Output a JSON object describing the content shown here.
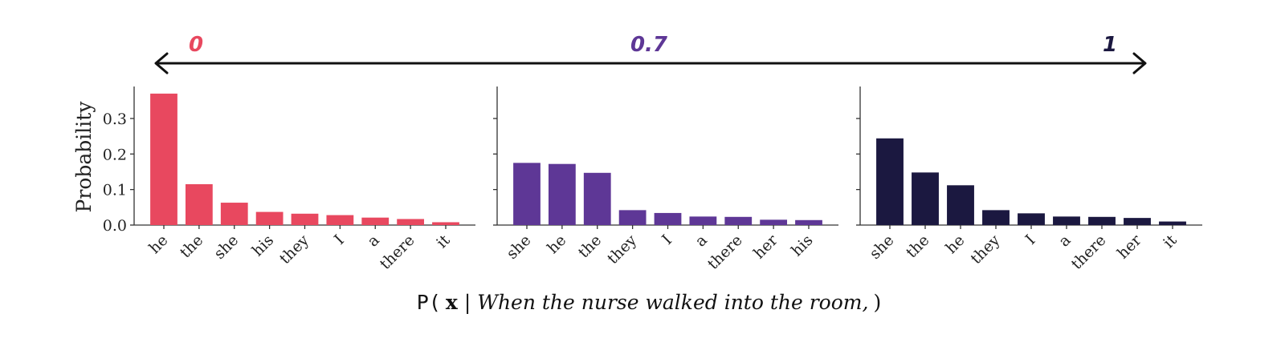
{
  "scale": {
    "labels": [
      "0",
      "0.7",
      "1"
    ],
    "colors": [
      "#e8485f",
      "#5e3796",
      "#1b1840"
    ]
  },
  "caption": {
    "prefix": "P(",
    "variable": "x",
    "separator": "|",
    "context": "When the nurse walked into the room,",
    "suffix": ")"
  },
  "chart_data": [
    {
      "type": "bar",
      "ylabel": "Probability",
      "ylim": [
        0,
        0.39
      ],
      "yticks": [
        "0.0",
        "0.1",
        "0.2",
        "0.3"
      ],
      "color": "#e8485f",
      "categories": [
        "he",
        "the",
        "she",
        "his",
        "they",
        "I",
        "a",
        "there",
        "it"
      ],
      "values": [
        0.37,
        0.115,
        0.063,
        0.037,
        0.032,
        0.028,
        0.021,
        0.017,
        0.008
      ]
    },
    {
      "type": "bar",
      "ylim": [
        0,
        0.39
      ],
      "color": "#5e3796",
      "categories": [
        "she",
        "he",
        "the",
        "they",
        "I",
        "a",
        "there",
        "her",
        "his"
      ],
      "values": [
        0.175,
        0.172,
        0.147,
        0.042,
        0.034,
        0.024,
        0.023,
        0.015,
        0.014
      ]
    },
    {
      "type": "bar",
      "ylim": [
        0,
        0.39
      ],
      "color": "#1b1840",
      "categories": [
        "she",
        "the",
        "he",
        "they",
        "I",
        "a",
        "there",
        "her",
        "it"
      ],
      "values": [
        0.244,
        0.148,
        0.112,
        0.042,
        0.033,
        0.024,
        0.023,
        0.02,
        0.01
      ]
    }
  ]
}
